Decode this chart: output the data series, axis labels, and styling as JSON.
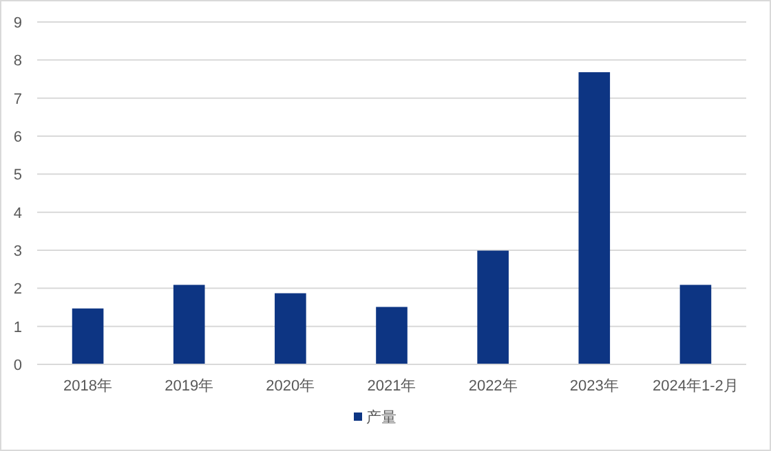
{
  "chart_data": {
    "type": "bar",
    "categories": [
      "2018年",
      "2019年",
      "2020年",
      "2021年",
      "2022年",
      "2023年",
      "2024年1-2月"
    ],
    "series": [
      {
        "name": "产量",
        "color": "#0d3583",
        "values": [
          1.47,
          2.09,
          1.87,
          1.51,
          2.99,
          7.68,
          2.09
        ]
      }
    ],
    "ylim": [
      0,
      9
    ],
    "yticks": [
      0,
      1,
      2,
      3,
      4,
      5,
      6,
      7,
      8,
      9
    ],
    "grid": "y",
    "legend": "bottom"
  }
}
